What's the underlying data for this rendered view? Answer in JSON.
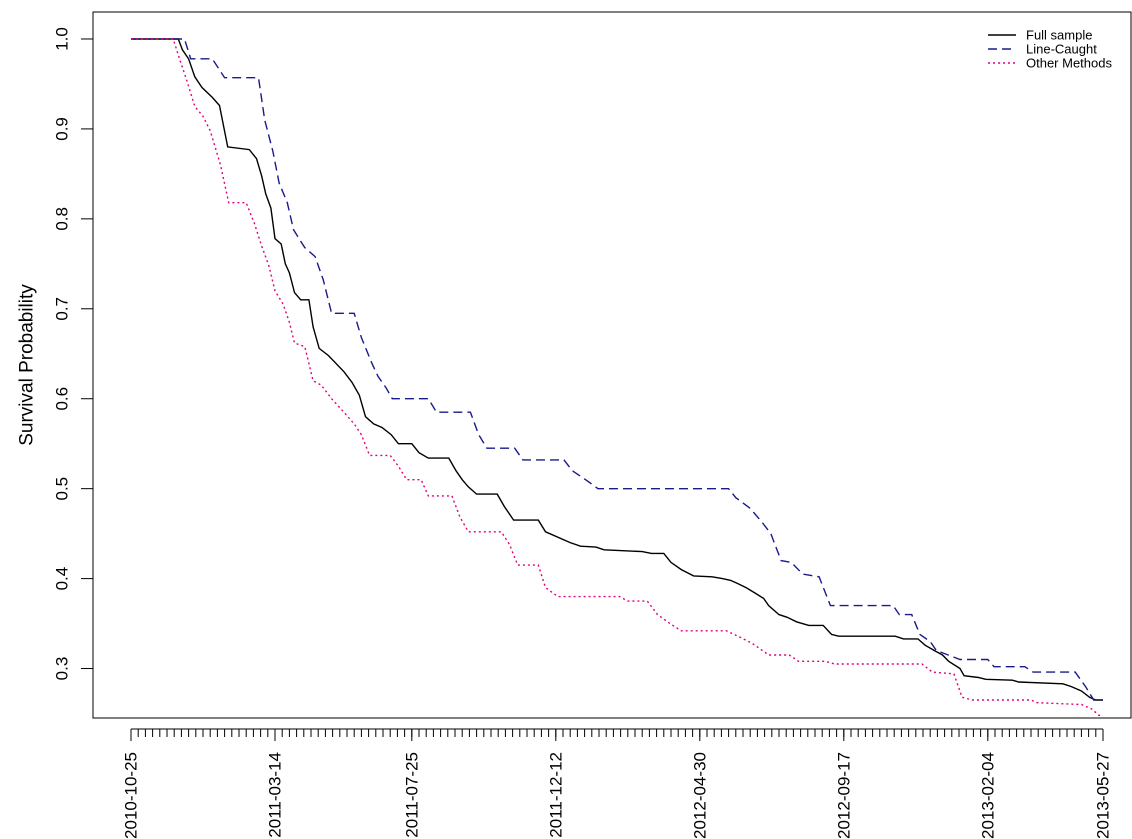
{
  "chart_data": {
    "type": "line",
    "title": "",
    "xlabel": "",
    "ylabel": "Survival Probability",
    "x_axis": {
      "type": "date",
      "range": [
        "2010-10-25",
        "2013-05-27"
      ],
      "tick_labels": [
        "2010-10-25",
        "2011-03-14",
        "2011-07-25",
        "2011-12-12",
        "2012-04-30",
        "2012-09-17",
        "2013-02-04",
        "2013-05-27"
      ],
      "minor_ticks": "weekly"
    },
    "y_axis": {
      "range": [
        0.245,
        1.03
      ],
      "tick_labels": [
        "0.3",
        "0.4",
        "0.5",
        "0.6",
        "0.7",
        "0.8",
        "0.9",
        "1.0"
      ],
      "ticks": [
        0.3,
        0.4,
        0.5,
        0.6,
        0.7,
        0.8,
        0.9,
        1.0
      ]
    },
    "grid": false,
    "legend": {
      "position": "top-right",
      "entries": [
        {
          "label": "Full sample",
          "color": "#000000",
          "style": "solid"
        },
        {
          "label": "Line-Caught",
          "color": "#1a1a8c",
          "style": "dashed"
        },
        {
          "label": "Other Methods",
          "color": "#e0007a",
          "style": "dotted"
        }
      ]
    },
    "series": [
      {
        "name": "Full sample",
        "color": "#000000",
        "style": "solid",
        "points": [
          [
            "2010-10-25",
            1.0
          ],
          [
            "2010-12-10",
            1.0
          ],
          [
            "2010-12-14",
            0.988
          ],
          [
            "2010-12-20",
            0.978
          ],
          [
            "2010-12-26",
            0.958
          ],
          [
            "2011-01-02",
            0.946
          ],
          [
            "2011-01-12",
            0.935
          ],
          [
            "2011-01-19",
            0.926
          ],
          [
            "2011-01-27",
            0.88
          ],
          [
            "2011-02-17",
            0.877
          ],
          [
            "2011-02-24",
            0.867
          ],
          [
            "2011-03-01",
            0.848
          ],
          [
            "2011-03-05",
            0.828
          ],
          [
            "2011-03-10",
            0.812
          ],
          [
            "2011-03-14",
            0.778
          ],
          [
            "2011-03-20",
            0.772
          ],
          [
            "2011-03-24",
            0.75
          ],
          [
            "2011-03-28",
            0.74
          ],
          [
            "2011-04-02",
            0.718
          ],
          [
            "2011-04-08",
            0.71
          ],
          [
            "2011-04-16",
            0.71
          ],
          [
            "2011-04-20",
            0.68
          ],
          [
            "2011-04-26",
            0.656
          ],
          [
            "2011-05-05",
            0.648
          ],
          [
            "2011-05-20",
            0.63
          ],
          [
            "2011-05-28",
            0.618
          ],
          [
            "2011-06-04",
            0.604
          ],
          [
            "2011-06-10",
            0.58
          ],
          [
            "2011-06-18",
            0.572
          ],
          [
            "2011-06-26",
            0.568
          ],
          [
            "2011-07-05",
            0.56
          ],
          [
            "2011-07-12",
            0.55
          ],
          [
            "2011-07-25",
            0.55
          ],
          [
            "2011-08-01",
            0.54
          ],
          [
            "2011-08-10",
            0.534
          ],
          [
            "2011-08-30",
            0.534
          ],
          [
            "2011-09-06",
            0.52
          ],
          [
            "2011-09-12",
            0.51
          ],
          [
            "2011-09-18",
            0.502
          ],
          [
            "2011-09-26",
            0.494
          ],
          [
            "2011-10-16",
            0.494
          ],
          [
            "2011-10-23",
            0.48
          ],
          [
            "2011-11-01",
            0.465
          ],
          [
            "2011-11-25",
            0.465
          ],
          [
            "2011-12-02",
            0.452
          ],
          [
            "2011-12-26",
            0.44
          ],
          [
            "2012-01-05",
            0.436
          ],
          [
            "2012-01-20",
            0.435
          ],
          [
            "2012-01-28",
            0.432
          ],
          [
            "2012-03-05",
            0.43
          ],
          [
            "2012-03-14",
            0.428
          ],
          [
            "2012-03-26",
            0.428
          ],
          [
            "2012-04-02",
            0.418
          ],
          [
            "2012-04-12",
            0.41
          ],
          [
            "2012-04-24",
            0.403
          ],
          [
            "2012-05-12",
            0.402
          ],
          [
            "2012-05-22",
            0.4
          ],
          [
            "2012-05-30",
            0.398
          ],
          [
            "2012-06-05",
            0.395
          ],
          [
            "2012-06-14",
            0.39
          ],
          [
            "2012-06-24",
            0.383
          ],
          [
            "2012-07-01",
            0.378
          ],
          [
            "2012-07-06",
            0.37
          ],
          [
            "2012-07-16",
            0.36
          ],
          [
            "2012-07-24",
            0.357
          ],
          [
            "2012-08-02",
            0.352
          ],
          [
            "2012-08-14",
            0.348
          ],
          [
            "2012-08-28",
            0.348
          ],
          [
            "2012-09-05",
            0.338
          ],
          [
            "2012-09-12",
            0.336
          ],
          [
            "2012-11-06",
            0.336
          ],
          [
            "2012-11-14",
            0.333
          ],
          [
            "2012-11-28",
            0.333
          ],
          [
            "2012-12-05",
            0.326
          ],
          [
            "2012-12-14",
            0.32
          ],
          [
            "2012-12-22",
            0.315
          ],
          [
            "2012-12-28",
            0.308
          ],
          [
            "2013-01-08",
            0.3
          ],
          [
            "2013-01-12",
            0.292
          ],
          [
            "2013-01-26",
            0.29
          ],
          [
            "2013-02-02",
            0.288
          ],
          [
            "2013-02-28",
            0.287
          ],
          [
            "2013-03-06",
            0.285
          ],
          [
            "2013-04-18",
            0.283
          ],
          [
            "2013-04-26",
            0.28
          ],
          [
            "2013-05-06",
            0.275
          ],
          [
            "2013-05-14",
            0.268
          ],
          [
            "2013-05-20",
            0.265
          ],
          [
            "2013-05-27",
            0.265
          ]
        ]
      },
      {
        "name": "Line-Caught",
        "color": "#1a1a8c",
        "style": "dashed",
        "points": [
          [
            "2010-10-25",
            1.0
          ],
          [
            "2010-12-16",
            1.0
          ],
          [
            "2010-12-22",
            0.978
          ],
          [
            "2011-01-12",
            0.978
          ],
          [
            "2011-01-24",
            0.957
          ],
          [
            "2011-02-26",
            0.957
          ],
          [
            "2011-03-04",
            0.91
          ],
          [
            "2011-03-12",
            0.875
          ],
          [
            "2011-03-18",
            0.84
          ],
          [
            "2011-03-26",
            0.818
          ],
          [
            "2011-04-01",
            0.788
          ],
          [
            "2011-04-08",
            0.775
          ],
          [
            "2011-04-12",
            0.768
          ],
          [
            "2011-04-22",
            0.758
          ],
          [
            "2011-04-30",
            0.732
          ],
          [
            "2011-05-08",
            0.695
          ],
          [
            "2011-05-30",
            0.695
          ],
          [
            "2011-06-06",
            0.668
          ],
          [
            "2011-06-16",
            0.64
          ],
          [
            "2011-06-22",
            0.625
          ],
          [
            "2011-06-30",
            0.612
          ],
          [
            "2011-07-06",
            0.6
          ],
          [
            "2011-08-10",
            0.6
          ],
          [
            "2011-08-18",
            0.585
          ],
          [
            "2011-09-20",
            0.585
          ],
          [
            "2011-09-28",
            0.56
          ],
          [
            "2011-10-06",
            0.545
          ],
          [
            "2011-11-02",
            0.545
          ],
          [
            "2011-11-10",
            0.532
          ],
          [
            "2011-12-20",
            0.532
          ],
          [
            "2011-12-28",
            0.52
          ],
          [
            "2012-01-10",
            0.51
          ],
          [
            "2012-01-22",
            0.5
          ],
          [
            "2012-05-28",
            0.5
          ],
          [
            "2012-06-04",
            0.49
          ],
          [
            "2012-06-18",
            0.478
          ],
          [
            "2012-06-30",
            0.462
          ],
          [
            "2012-07-08",
            0.45
          ],
          [
            "2012-07-18",
            0.42
          ],
          [
            "2012-07-28",
            0.418
          ],
          [
            "2012-08-08",
            0.405
          ],
          [
            "2012-08-24",
            0.402
          ],
          [
            "2012-09-04",
            0.37
          ],
          [
            "2012-11-04",
            0.37
          ],
          [
            "2012-11-10",
            0.36
          ],
          [
            "2012-11-22",
            0.36
          ],
          [
            "2012-11-30",
            0.338
          ],
          [
            "2012-12-10",
            0.33
          ],
          [
            "2012-12-16",
            0.32
          ],
          [
            "2013-01-08",
            0.31
          ],
          [
            "2013-02-04",
            0.31
          ],
          [
            "2013-02-10",
            0.302
          ],
          [
            "2013-03-12",
            0.302
          ],
          [
            "2013-03-20",
            0.296
          ],
          [
            "2013-04-30",
            0.296
          ],
          [
            "2013-05-10",
            0.28
          ],
          [
            "2013-05-18",
            0.265
          ],
          [
            "2013-05-27",
            0.265
          ]
        ]
      },
      {
        "name": "Other Methods",
        "color": "#e0007a",
        "style": "dotted",
        "points": [
          [
            "2010-10-25",
            1.0
          ],
          [
            "2010-12-05",
            1.0
          ],
          [
            "2010-12-12",
            0.975
          ],
          [
            "2010-12-18",
            0.955
          ],
          [
            "2010-12-26",
            0.925
          ],
          [
            "2011-01-03",
            0.914
          ],
          [
            "2011-01-10",
            0.898
          ],
          [
            "2011-01-20",
            0.86
          ],
          [
            "2011-01-28",
            0.818
          ],
          [
            "2011-02-14",
            0.818
          ],
          [
            "2011-02-22",
            0.795
          ],
          [
            "2011-03-01",
            0.77
          ],
          [
            "2011-03-08",
            0.748
          ],
          [
            "2011-03-14",
            0.72
          ],
          [
            "2011-03-22",
            0.705
          ],
          [
            "2011-03-28",
            0.685
          ],
          [
            "2011-04-02",
            0.662
          ],
          [
            "2011-04-12",
            0.658
          ],
          [
            "2011-04-20",
            0.62
          ],
          [
            "2011-04-28",
            0.615
          ],
          [
            "2011-05-08",
            0.6
          ],
          [
            "2011-05-20",
            0.585
          ],
          [
            "2011-05-30",
            0.572
          ],
          [
            "2011-06-06",
            0.56
          ],
          [
            "2011-06-14",
            0.537
          ],
          [
            "2011-07-04",
            0.537
          ],
          [
            "2011-07-12",
            0.525
          ],
          [
            "2011-07-20",
            0.51
          ],
          [
            "2011-08-03",
            0.51
          ],
          [
            "2011-08-10",
            0.492
          ],
          [
            "2011-09-02",
            0.492
          ],
          [
            "2011-09-10",
            0.468
          ],
          [
            "2011-09-18",
            0.452
          ],
          [
            "2011-10-20",
            0.452
          ],
          [
            "2011-10-28",
            0.438
          ],
          [
            "2011-11-05",
            0.415
          ],
          [
            "2011-11-25",
            0.415
          ],
          [
            "2011-12-02",
            0.39
          ],
          [
            "2011-12-14",
            0.38
          ],
          [
            "2012-02-12",
            0.38
          ],
          [
            "2012-02-20",
            0.375
          ],
          [
            "2012-03-10",
            0.375
          ],
          [
            "2012-03-20",
            0.36
          ],
          [
            "2012-04-01",
            0.35
          ],
          [
            "2012-04-12",
            0.342
          ],
          [
            "2012-05-26",
            0.342
          ],
          [
            "2012-06-06",
            0.336
          ],
          [
            "2012-06-20",
            0.328
          ],
          [
            "2012-07-06",
            0.315
          ],
          [
            "2012-07-26",
            0.315
          ],
          [
            "2012-08-04",
            0.308
          ],
          [
            "2012-08-30",
            0.308
          ],
          [
            "2012-09-08",
            0.305
          ],
          [
            "2012-12-02",
            0.305
          ],
          [
            "2012-12-12",
            0.296
          ],
          [
            "2013-01-02",
            0.294
          ],
          [
            "2013-01-10",
            0.268
          ],
          [
            "2013-01-20",
            0.265
          ],
          [
            "2013-03-18",
            0.265
          ],
          [
            "2013-03-24",
            0.262
          ],
          [
            "2013-05-06",
            0.26
          ],
          [
            "2013-05-16",
            0.255
          ],
          [
            "2013-05-23",
            0.248
          ],
          [
            "2013-05-27",
            0.248
          ]
        ]
      }
    ]
  }
}
